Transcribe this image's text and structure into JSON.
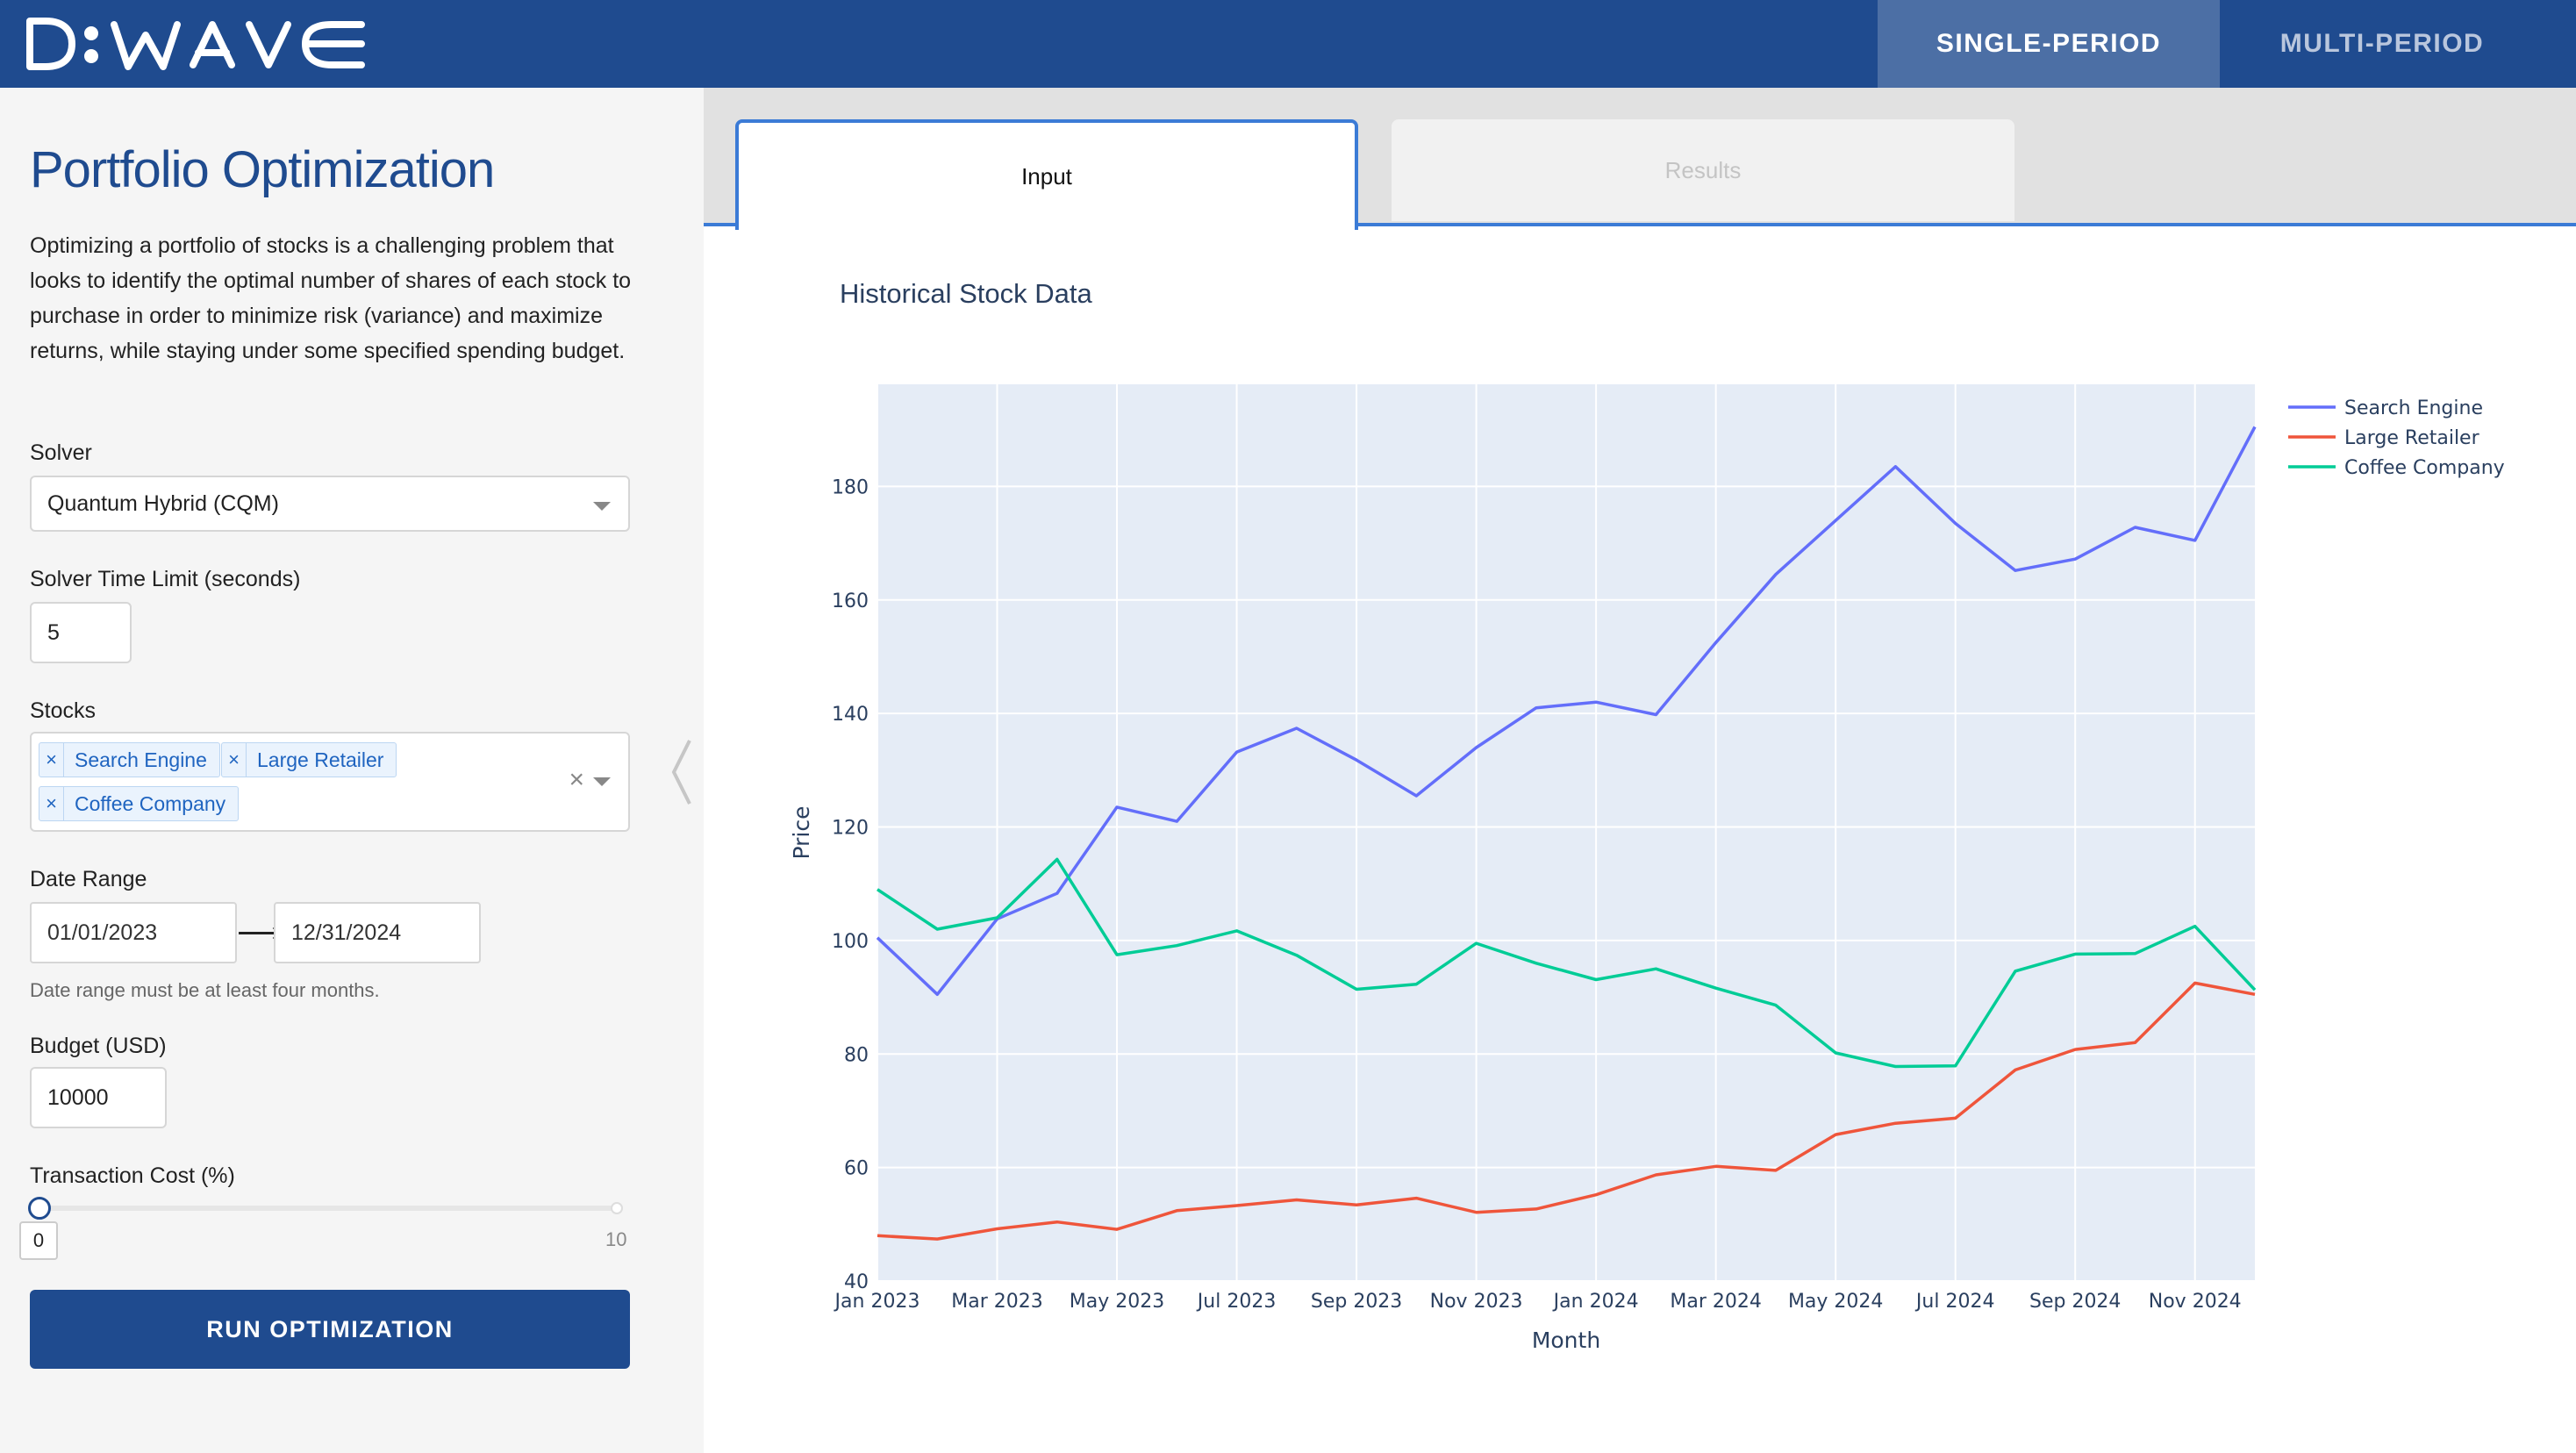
{
  "header": {
    "logo_text": "D:wave",
    "tabs": [
      {
        "label": "SINGLE-PERIOD"
      },
      {
        "label": "MULTI-PERIOD"
      }
    ]
  },
  "sidebar": {
    "title": "Portfolio Optimization",
    "intro": "Optimizing a portfolio of stocks is a challenging problem that looks to identify the optimal number of shares of each stock to purchase in order to minimize risk (variance) and maximize returns, while staying under some specified spending budget.",
    "solver_label": "Solver",
    "solver_value": "Quantum Hybrid (CQM)",
    "time_limit_label": "Solver Time Limit (seconds)",
    "time_limit_value": "5",
    "stocks_label": "Stocks",
    "stocks": [
      "Search Engine",
      "Large Retailer",
      "Coffee Company"
    ],
    "date_range_label": "Date Range",
    "date_start": "01/01/2023",
    "date_end": "12/31/2024",
    "date_hint": "Date range must be at least four months.",
    "budget_label": "Budget (USD)",
    "budget_value": "10000",
    "transaction_label": "Transaction Cost (%)",
    "transaction_value": "0",
    "transaction_max": "10",
    "run_label": "RUN OPTIMIZATION"
  },
  "main": {
    "tabs": [
      {
        "label": "Input"
      },
      {
        "label": "Results"
      }
    ]
  },
  "colors": {
    "brand": "#1f4b8f",
    "accent": "#3b7bd6",
    "search_engine": "#636efa",
    "large_retailer": "#ef553b",
    "coffee_company": "#00cc96",
    "plot_bg": "#e5ecf6"
  },
  "chart_data": {
    "type": "line",
    "title": "Historical Stock Data",
    "xlabel": "Month",
    "ylabel": "Price",
    "x": [
      "2023-01",
      "2023-02",
      "2023-03",
      "2023-04",
      "2023-05",
      "2023-06",
      "2023-07",
      "2023-08",
      "2023-09",
      "2023-10",
      "2023-11",
      "2023-12",
      "2024-01",
      "2024-02",
      "2024-03",
      "2024-04",
      "2024-05",
      "2024-06",
      "2024-07",
      "2024-08",
      "2024-09",
      "2024-10",
      "2024-11",
      "2024-12"
    ],
    "x_tick_labels": [
      "Jan 2023",
      "Mar 2023",
      "May 2023",
      "Jul 2023",
      "Sep 2023",
      "Nov 2023",
      "Jan 2024",
      "Mar 2024",
      "May 2024",
      "Jul 2024",
      "Sep 2024",
      "Nov 2024"
    ],
    "y_ticks": [
      40,
      60,
      80,
      100,
      120,
      140,
      160,
      180
    ],
    "ylim": [
      40,
      198
    ],
    "grid": true,
    "legend": "top-right",
    "series": [
      {
        "name": "Search Engine",
        "color": "#636efa",
        "values": [
          100.5,
          90.5,
          103.8,
          108.3,
          123.5,
          121,
          133.2,
          137.4,
          131.8,
          125.5,
          134,
          141,
          142,
          139.8,
          152.5,
          164.5,
          174,
          183.5,
          173.5,
          165.2,
          167.2,
          172.8,
          170.5,
          190.5
        ]
      },
      {
        "name": "Large Retailer",
        "color": "#ef553b",
        "values": [
          48,
          47.4,
          49.2,
          50.4,
          49.1,
          52.4,
          53.3,
          54.3,
          53.4,
          54.6,
          52.1,
          52.7,
          55.2,
          58.7,
          60.2,
          59.5,
          65.8,
          67.8,
          68.7,
          77.2,
          80.8,
          82,
          92.5,
          90.5
        ]
      },
      {
        "name": "Coffee Company",
        "color": "#00cc96",
        "values": [
          109,
          102,
          104,
          114.3,
          97.5,
          99.1,
          101.7,
          97.4,
          91.4,
          92.3,
          99.5,
          96,
          93.1,
          95,
          91.6,
          88.6,
          80.2,
          77.8,
          77.9,
          94.6,
          97.6,
          97.7,
          102.5,
          91.3
        ]
      }
    ]
  }
}
